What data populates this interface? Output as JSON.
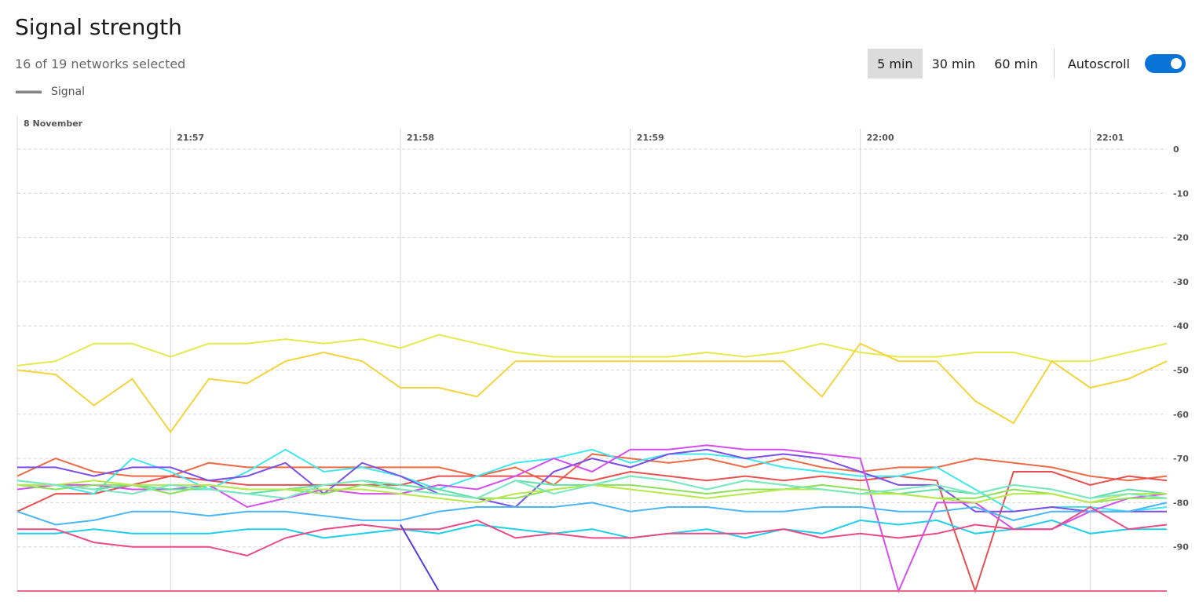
{
  "header": {
    "title": "Signal strength",
    "subtitle": "16 of 19 networks selected",
    "legend_label": "Signal",
    "ranges": [
      {
        "label": "5 min",
        "active": true
      },
      {
        "label": "30 min",
        "active": false
      },
      {
        "label": "60 min",
        "active": false
      }
    ],
    "autoscroll_label": "Autoscroll",
    "autoscroll_on": true,
    "accent_color": "#0a73d8"
  },
  "chart_data": {
    "type": "line",
    "date_label": "8 November",
    "x_ticks": [
      "21:57",
      "21:58",
      "21:59",
      "22:00",
      "22:01"
    ],
    "y_ticks": [
      "0",
      "-10",
      "-20",
      "-30",
      "-40",
      "-50",
      "-60",
      "-70",
      "-80",
      "-90"
    ],
    "x_range": [
      "21:56:20",
      "22:01:20"
    ],
    "ylim": [
      -100,
      0
    ],
    "grid": true,
    "sample_interval_seconds": 10,
    "series": [
      {
        "color": "#e5ea4c",
        "values": [
          -49,
          -48,
          -44,
          -44,
          -47,
          -44,
          -44,
          -43,
          -44,
          -43,
          -45,
          -42,
          -44,
          -46,
          -47,
          -47,
          -47,
          -47,
          -46,
          -47,
          -46,
          -44,
          -46,
          -47,
          -47,
          -46,
          -46,
          -48,
          -48,
          -46,
          -44
        ]
      },
      {
        "color": "#f5d33b",
        "values": [
          -50,
          -51,
          -58,
          -52,
          -64,
          -52,
          -53,
          -48,
          -46,
          -48,
          -54,
          -54,
          -56,
          -48,
          -48,
          -48,
          -48,
          -48,
          -48,
          -48,
          -48,
          -56,
          -44,
          -48,
          -48,
          -57,
          -62,
          -48,
          -54,
          -52,
          -48
        ]
      },
      {
        "color": "#ee6a46",
        "values": [
          -74,
          -70,
          -73,
          -74,
          -74,
          -71,
          -72,
          -72,
          -72,
          -72,
          -72,
          -72,
          -74,
          -72,
          -76,
          -69,
          -70,
          -71,
          -70,
          -72,
          -70,
          -72,
          -73,
          -72,
          -72,
          -70,
          -71,
          -72,
          -74,
          -75,
          -74
        ]
      },
      {
        "color": "#e84f4f",
        "values": [
          -82,
          -78,
          -78,
          -76,
          -74,
          -75,
          -76,
          -76,
          -76,
          -76,
          -76,
          -74,
          -74,
          -74,
          -74,
          -75,
          -73,
          -74,
          -75,
          -74,
          -75,
          -74,
          -75,
          -74,
          -75,
          -100,
          -73,
          -73,
          -76,
          -74,
          -75
        ]
      },
      {
        "color": "#3ee8ee",
        "values": [
          -76,
          -76,
          -78,
          -70,
          -73,
          -77,
          -73,
          -68,
          -73,
          -72,
          -74,
          -77,
          -74,
          -71,
          -70,
          -68,
          -71,
          -69,
          -69,
          -70,
          -72,
          -73,
          -74,
          -74,
          -72,
          -77,
          -82,
          -81,
          -81,
          -82,
          -81
        ]
      },
      {
        "color": "#7b4fe8",
        "values": [
          -72,
          -72,
          -74,
          -72,
          -72,
          -75,
          -74,
          -71,
          -78,
          -71,
          -74,
          -78,
          -79,
          -81,
          -73,
          -70,
          -72,
          -69,
          -68,
          -70,
          -69,
          -70,
          -73,
          -76,
          -76,
          -82,
          -82,
          -81,
          -82,
          -82,
          -82
        ]
      },
      {
        "color": "#d44ef0",
        "values": [
          -77,
          -76,
          -76,
          -77,
          -77,
          -76,
          -81,
          -79,
          -77,
          -78,
          -78,
          -76,
          -77,
          -74,
          -70,
          -73,
          -68,
          -68,
          -67,
          -68,
          -68,
          -69,
          -70,
          -100,
          -80,
          -80,
          -86,
          -86,
          -82,
          -79,
          -78
        ]
      },
      {
        "color": "#5de0a8",
        "values": [
          -75,
          -76,
          -77,
          -76,
          -77,
          -77,
          -78,
          -77,
          -76,
          -75,
          -76,
          -77,
          -79,
          -75,
          -76,
          -76,
          -74,
          -75,
          -77,
          -75,
          -76,
          -77,
          -78,
          -78,
          -77,
          -78,
          -76,
          -77,
          -79,
          -77,
          -78
        ]
      },
      {
        "color": "#8de05a",
        "values": [
          -76,
          -77,
          -76,
          -76,
          -78,
          -76,
          -77,
          -77,
          -78,
          -76,
          -77,
          -78,
          -79,
          -79,
          -77,
          -76,
          -76,
          -77,
          -78,
          -77,
          -77,
          -76,
          -77,
          -78,
          -79,
          -79,
          -77,
          -78,
          -80,
          -79,
          -79
        ]
      },
      {
        "color": "#b8e84a",
        "values": [
          -76,
          -76,
          -75,
          -76,
          -76,
          -76,
          -77,
          -77,
          -77,
          -77,
          -78,
          -79,
          -80,
          -78,
          -77,
          -76,
          -77,
          -78,
          -79,
          -78,
          -77,
          -77,
          -78,
          -78,
          -79,
          -80,
          -78,
          -78,
          -80,
          -78,
          -78
        ]
      },
      {
        "color": "#7ae8c0",
        "values": [
          -75,
          -76,
          -77,
          -78,
          -76,
          -77,
          -78,
          -79,
          -76,
          -75,
          -77,
          -78,
          -79,
          -75,
          -78,
          -76,
          -74,
          -75,
          -77,
          -75,
          -76,
          -77,
          -78,
          -77,
          -76,
          -78,
          -76,
          -77,
          -79,
          -78,
          -79
        ]
      },
      {
        "color": "#49b6f5",
        "values": [
          -82,
          -85,
          -84,
          -82,
          -82,
          -83,
          -82,
          -82,
          -83,
          -84,
          -84,
          -82,
          -81,
          -81,
          -81,
          -80,
          -82,
          -81,
          -81,
          -82,
          -82,
          -81,
          -81,
          -82,
          -82,
          -81,
          -84,
          -82,
          -82,
          -82,
          -80
        ]
      },
      {
        "color": "#1ecfe8",
        "values": [
          -87,
          -87,
          -86,
          -87,
          -87,
          -87,
          -86,
          -86,
          -88,
          -87,
          -86,
          -87,
          -85,
          -86,
          -87,
          -86,
          -88,
          -87,
          -86,
          -88,
          -86,
          -87,
          -84,
          -85,
          -84,
          -87,
          -86,
          -84,
          -87,
          -86,
          -86
        ]
      },
      {
        "color": "#ea4a86",
        "values": [
          -86,
          -86,
          -89,
          -90,
          -90,
          -90,
          -92,
          -88,
          -86,
          -85,
          -86,
          -86,
          -84,
          -88,
          -87,
          -88,
          -88,
          -87,
          -87,
          -87,
          -86,
          -88,
          -87,
          -88,
          -87,
          -85,
          -86,
          -86,
          -81,
          -86,
          -85
        ]
      },
      {
        "color": "#5a3ae0",
        "values": [
          null,
          null,
          null,
          null,
          null,
          null,
          null,
          null,
          null,
          null,
          -85,
          -100,
          null,
          null,
          null,
          null,
          null,
          null,
          null,
          null,
          null,
          null,
          null,
          null,
          null,
          null,
          null,
          null,
          null,
          null,
          null
        ]
      },
      {
        "color": "#e86a8a",
        "values": [
          -100,
          -100,
          -100,
          -100,
          -100,
          -100,
          -100,
          -100,
          -100,
          -100,
          -100,
          -100,
          -100,
          -100,
          -100,
          -100,
          -100,
          -100,
          -100,
          -100,
          -100,
          -100,
          -100,
          -100,
          -100,
          -100,
          -100,
          -100,
          -100,
          -100,
          -100
        ]
      }
    ]
  }
}
